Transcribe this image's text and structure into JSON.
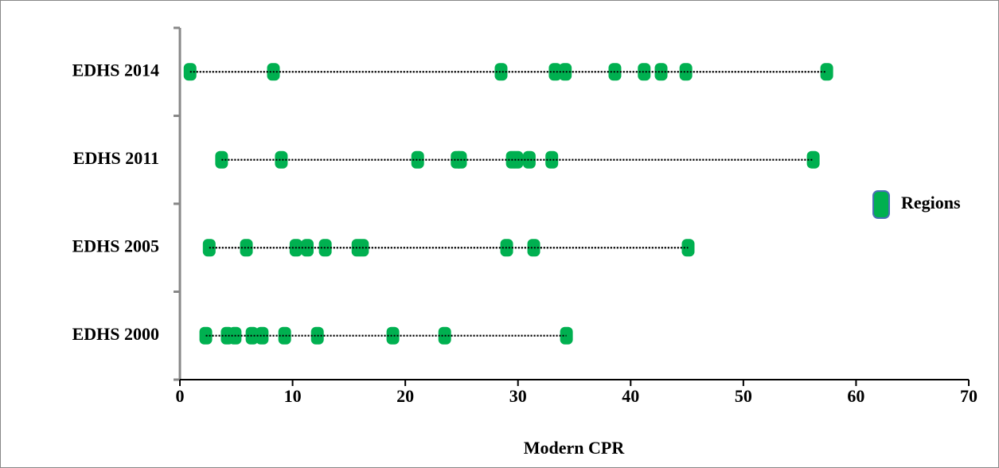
{
  "chart_data": {
    "type": "dot",
    "categories": [
      "EDHS 2000",
      "EDHS 2005",
      "EDHS 2011",
      "EDHS 2014"
    ],
    "series": [
      {
        "name": "Regions",
        "color": "#00b050",
        "values": [
          [
            2.3,
            4.2,
            4.9,
            6.4,
            7.3,
            9.3,
            12.2,
            18.9,
            23.5,
            34.3
          ],
          [
            2.6,
            5.9,
            10.3,
            11.3,
            12.9,
            15.8,
            16.2,
            29.0,
            31.4,
            45.1
          ],
          [
            3.7,
            9.0,
            21.1,
            24.6,
            24.9,
            29.5,
            29.9,
            31.0,
            33.0,
            56.2
          ],
          [
            0.9,
            8.3,
            28.5,
            33.3,
            34.2,
            38.6,
            41.2,
            42.7,
            44.9,
            57.4
          ]
        ]
      }
    ],
    "x_label": "Modern CPR",
    "xlim": [
      0,
      70
    ],
    "xticks": [
      0,
      10,
      20,
      30,
      40,
      50,
      60,
      70
    ],
    "legend": "right"
  }
}
